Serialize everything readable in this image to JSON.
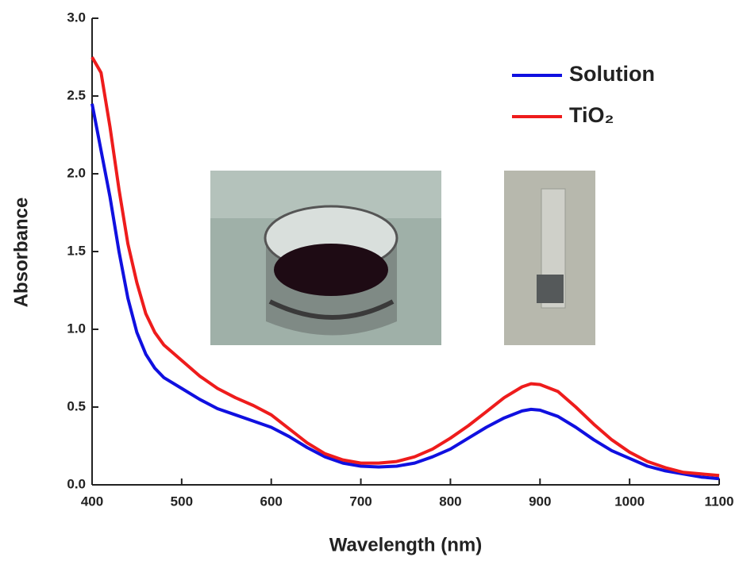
{
  "chart_data": {
    "type": "line",
    "xlabel": "Wavelength (nm)",
    "ylabel": "Absorbance",
    "x": [
      400,
      410,
      420,
      430,
      440,
      450,
      460,
      470,
      480,
      500,
      520,
      540,
      560,
      580,
      600,
      620,
      640,
      660,
      680,
      700,
      720,
      740,
      760,
      780,
      800,
      820,
      840,
      860,
      880,
      890,
      900,
      920,
      940,
      960,
      980,
      1000,
      1020,
      1040,
      1060,
      1080,
      1100
    ],
    "series": [
      {
        "name": "Solution",
        "color": "#1010e0",
        "values": [
          2.45,
          2.15,
          1.85,
          1.5,
          1.2,
          0.98,
          0.84,
          0.75,
          0.69,
          0.62,
          0.55,
          0.49,
          0.45,
          0.41,
          0.37,
          0.31,
          0.24,
          0.18,
          0.14,
          0.12,
          0.115,
          0.12,
          0.14,
          0.18,
          0.23,
          0.3,
          0.37,
          0.43,
          0.475,
          0.485,
          0.48,
          0.44,
          0.37,
          0.29,
          0.22,
          0.17,
          0.12,
          0.09,
          0.07,
          0.05,
          0.04
        ]
      },
      {
        "name": "TiO₂",
        "color": "#ee1c1c",
        "values": [
          2.75,
          2.65,
          2.3,
          1.9,
          1.55,
          1.3,
          1.1,
          0.98,
          0.9,
          0.8,
          0.7,
          0.62,
          0.56,
          0.51,
          0.45,
          0.36,
          0.27,
          0.2,
          0.16,
          0.14,
          0.14,
          0.15,
          0.18,
          0.23,
          0.3,
          0.38,
          0.47,
          0.56,
          0.63,
          0.65,
          0.645,
          0.6,
          0.5,
          0.39,
          0.29,
          0.21,
          0.15,
          0.11,
          0.08,
          0.07,
          0.06
        ]
      }
    ],
    "xlim": [
      400,
      1100
    ],
    "xticks": [
      400,
      500,
      600,
      700,
      800,
      900,
      1000,
      1100
    ],
    "ylim": [
      0,
      3
    ],
    "yticks": [
      {
        "value": 0,
        "label": "0.0"
      },
      0.5,
      {
        "value": 1,
        "label": "1.0"
      },
      1.5,
      {
        "value": 2,
        "label": "2.0"
      },
      2.5,
      {
        "value": 3,
        "label": "3.0"
      }
    ],
    "legend": "upper right"
  }
}
